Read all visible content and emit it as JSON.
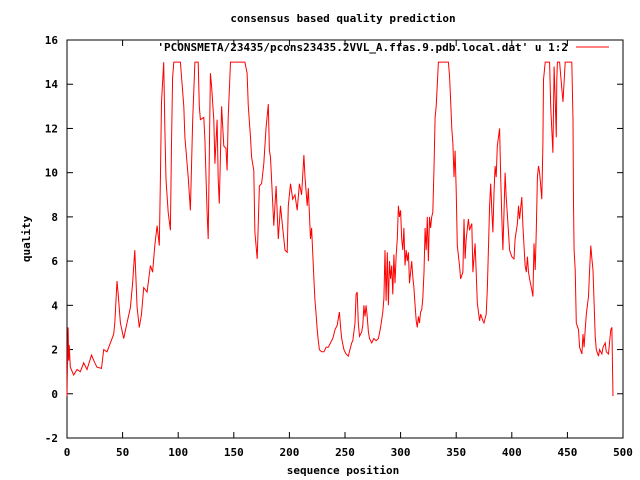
{
  "chart_data": {
    "type": "line",
    "title": "consensus based quality prediction",
    "xlabel": "sequence position",
    "ylabel": "quality",
    "xlim": [
      0,
      500
    ],
    "ylim": [
      -2,
      16
    ],
    "x_ticks": [
      0,
      50,
      100,
      150,
      200,
      250,
      300,
      350,
      400,
      450,
      500
    ],
    "y_ticks": [
      -2,
      0,
      2,
      4,
      6,
      8,
      10,
      12,
      14,
      16
    ],
    "grid": false,
    "legend_position": "top-right",
    "series": [
      {
        "name": "'PCONSMETA/23435/pcons23435.2VVL_A.ffas.9.pdb.local.dat' u 1:2",
        "color": "#ff0000",
        "points": [
          [
            0,
            -0.1
          ],
          [
            1,
            3.0
          ],
          [
            1.5,
            1.5
          ],
          [
            2,
            2.2
          ],
          [
            3,
            1.2
          ],
          [
            6,
            0.85
          ],
          [
            9,
            1.1
          ],
          [
            12,
            1.0
          ],
          [
            15,
            1.4
          ],
          [
            18,
            1.1
          ],
          [
            22,
            1.75
          ],
          [
            25,
            1.4
          ],
          [
            27,
            1.2
          ],
          [
            31,
            1.15
          ],
          [
            33,
            2.0
          ],
          [
            36,
            1.9
          ],
          [
            39,
            2.3
          ],
          [
            42,
            2.7
          ],
          [
            43,
            3.2
          ],
          [
            45,
            5.1
          ],
          [
            46,
            4.5
          ],
          [
            48,
            3.2
          ],
          [
            51,
            2.5
          ],
          [
            54,
            3.2
          ],
          [
            57,
            3.9
          ],
          [
            59,
            5.0
          ],
          [
            61,
            6.5
          ],
          [
            63,
            3.9
          ],
          [
            65,
            3.0
          ],
          [
            67,
            3.6
          ],
          [
            69,
            4.8
          ],
          [
            72,
            4.6
          ],
          [
            75,
            5.8
          ],
          [
            77,
            5.5
          ],
          [
            79,
            6.7
          ],
          [
            81,
            7.6
          ],
          [
            83,
            6.7
          ],
          [
            84,
            9.7
          ],
          [
            85,
            13.2
          ],
          [
            87,
            15.0
          ],
          [
            88,
            11.9
          ],
          [
            89,
            9.7
          ],
          [
            91,
            8.2
          ],
          [
            93,
            7.4
          ],
          [
            94,
            11.3
          ],
          [
            95,
            14.3
          ],
          [
            96,
            15.0
          ],
          [
            102,
            15.0
          ],
          [
            105,
            13.0
          ],
          [
            106,
            11.6
          ],
          [
            109,
            9.8
          ],
          [
            111,
            8.3
          ],
          [
            113,
            12.4
          ],
          [
            115,
            15.0
          ],
          [
            118,
            15.0
          ],
          [
            119,
            13.0
          ],
          [
            120,
            12.4
          ],
          [
            123,
            12.5
          ],
          [
            124,
            11.5
          ],
          [
            126,
            8.2
          ],
          [
            127,
            7.0
          ],
          [
            129,
            14.5
          ],
          [
            130,
            13.9
          ],
          [
            132,
            12.4
          ],
          [
            133,
            10.4
          ],
          [
            135,
            12.4
          ],
          [
            136,
            9.7
          ],
          [
            137,
            8.6
          ],
          [
            139,
            13.0
          ],
          [
            141,
            11.2
          ],
          [
            143,
            11.1
          ],
          [
            144,
            10.1
          ],
          [
            145,
            12.5
          ],
          [
            147,
            15.0
          ],
          [
            160,
            15.0
          ],
          [
            162,
            14.5
          ],
          [
            163,
            13.0
          ],
          [
            165,
            11.6
          ],
          [
            166,
            10.7
          ],
          [
            168,
            10.1
          ],
          [
            169,
            7.3
          ],
          [
            171,
            6.1
          ],
          [
            173,
            9.4
          ],
          [
            175,
            9.5
          ],
          [
            177,
            10.4
          ],
          [
            179,
            12.0
          ],
          [
            181,
            13.1
          ],
          [
            182,
            11.0
          ],
          [
            183,
            10.7
          ],
          [
            186,
            7.6
          ],
          [
            188,
            9.4
          ],
          [
            190,
            7.0
          ],
          [
            192,
            8.5
          ],
          [
            194,
            7.5
          ],
          [
            196,
            6.5
          ],
          [
            198,
            6.4
          ],
          [
            199,
            8.5
          ],
          [
            201,
            9.5
          ],
          [
            203,
            8.8
          ],
          [
            205,
            9.0
          ],
          [
            207,
            8.3
          ],
          [
            209,
            9.5
          ],
          [
            211,
            9.0
          ],
          [
            213,
            10.8
          ],
          [
            214,
            9.8
          ],
          [
            216,
            8.5
          ],
          [
            217,
            9.3
          ],
          [
            219,
            7.0
          ],
          [
            220,
            7.5
          ],
          [
            222,
            5.2
          ],
          [
            223,
            4.2
          ],
          [
            224,
            3.6
          ],
          [
            225,
            2.9
          ],
          [
            226,
            2.4
          ],
          [
            227,
            2.0
          ],
          [
            229,
            1.9
          ],
          [
            231,
            1.9
          ],
          [
            233,
            2.1
          ],
          [
            235,
            2.1
          ],
          [
            237,
            2.3
          ],
          [
            239,
            2.5
          ],
          [
            241,
            2.9
          ],
          [
            243,
            3.1
          ],
          [
            245,
            3.7
          ],
          [
            246,
            3.0
          ],
          [
            247,
            2.5
          ],
          [
            249,
            2.0
          ],
          [
            251,
            1.8
          ],
          [
            253,
            1.7
          ],
          [
            254,
            1.9
          ],
          [
            256,
            2.3
          ],
          [
            257,
            2.4
          ],
          [
            259,
            3.2
          ],
          [
            260,
            4.5
          ],
          [
            261,
            4.6
          ],
          [
            262,
            3.2
          ],
          [
            263,
            2.6
          ],
          [
            265,
            2.8
          ],
          [
            266,
            3.1
          ],
          [
            267,
            4.0
          ],
          [
            268,
            3.5
          ],
          [
            269,
            4.0
          ],
          [
            270,
            3.5
          ],
          [
            271,
            2.8
          ],
          [
            272,
            2.5
          ],
          [
            274,
            2.3
          ],
          [
            276,
            2.5
          ],
          [
            278,
            2.4
          ],
          [
            280,
            2.5
          ],
          [
            282,
            3.0
          ],
          [
            284,
            3.7
          ],
          [
            285,
            4.3
          ],
          [
            286,
            6.5
          ],
          [
            287,
            4.2
          ],
          [
            288,
            6.4
          ],
          [
            289,
            4.0
          ],
          [
            290,
            6.0
          ],
          [
            291,
            5.2
          ],
          [
            292,
            5.8
          ],
          [
            293,
            4.5
          ],
          [
            294,
            6.3
          ],
          [
            295,
            5.0
          ],
          [
            296,
            6.3
          ],
          [
            297,
            7.0
          ],
          [
            298,
            8.5
          ],
          [
            299,
            8.0
          ],
          [
            300,
            8.3
          ],
          [
            301,
            7.0
          ],
          [
            302,
            6.5
          ],
          [
            303,
            7.5
          ],
          [
            304,
            5.8
          ],
          [
            305,
            6.5
          ],
          [
            306,
            6.0
          ],
          [
            307,
            6.4
          ],
          [
            308,
            5.0
          ],
          [
            309,
            5.5
          ],
          [
            310,
            6.0
          ],
          [
            311,
            5.3
          ],
          [
            312,
            4.8
          ],
          [
            313,
            4.0
          ],
          [
            314,
            3.3
          ],
          [
            315,
            3.0
          ],
          [
            316,
            3.5
          ],
          [
            317,
            3.2
          ],
          [
            318,
            3.7
          ],
          [
            319,
            3.8
          ],
          [
            320,
            4.3
          ],
          [
            321,
            5.5
          ],
          [
            322,
            7.5
          ],
          [
            323,
            6.5
          ],
          [
            324,
            8.0
          ],
          [
            325,
            6.0
          ],
          [
            326,
            8.0
          ],
          [
            327,
            7.5
          ],
          [
            328,
            8.0
          ],
          [
            329,
            8.2
          ],
          [
            330,
            10.2
          ],
          [
            331,
            12.5
          ],
          [
            332,
            13.0
          ],
          [
            333,
            14.0
          ],
          [
            334,
            15.0
          ],
          [
            343,
            15.0
          ],
          [
            344,
            14.4
          ],
          [
            345,
            13.3
          ],
          [
            346,
            12.0
          ],
          [
            347,
            11.3
          ],
          [
            348,
            9.8
          ],
          [
            349,
            11.0
          ],
          [
            350,
            9.2
          ],
          [
            351,
            6.7
          ],
          [
            353,
            5.8
          ],
          [
            354,
            5.2
          ],
          [
            356,
            5.5
          ],
          [
            357,
            7.9
          ],
          [
            358,
            6.1
          ],
          [
            359,
            7.0
          ],
          [
            361,
            7.9
          ],
          [
            362,
            7.4
          ],
          [
            364,
            7.7
          ],
          [
            365,
            5.5
          ],
          [
            367,
            6.8
          ],
          [
            368,
            5.5
          ],
          [
            369,
            4.1
          ],
          [
            371,
            3.3
          ],
          [
            372,
            3.6
          ],
          [
            374,
            3.3
          ],
          [
            375,
            3.2
          ],
          [
            377,
            3.6
          ],
          [
            378,
            4.7
          ],
          [
            379,
            6.5
          ],
          [
            380,
            8.5
          ],
          [
            381,
            9.5
          ],
          [
            382,
            8.3
          ],
          [
            383,
            7.3
          ],
          [
            384,
            9.1
          ],
          [
            385,
            10.3
          ],
          [
            386,
            9.8
          ],
          [
            387,
            11.2
          ],
          [
            389,
            12.0
          ],
          [
            390,
            9.8
          ],
          [
            391,
            8.0
          ],
          [
            392,
            6.5
          ],
          [
            393,
            8.2
          ],
          [
            394,
            10.0
          ],
          [
            395,
            8.9
          ],
          [
            397,
            7.3
          ],
          [
            398,
            6.5
          ],
          [
            400,
            6.2
          ],
          [
            402,
            6.1
          ],
          [
            403,
            7.0
          ],
          [
            405,
            7.7
          ],
          [
            406,
            8.5
          ],
          [
            407,
            7.9
          ],
          [
            409,
            8.9
          ],
          [
            410,
            7.6
          ],
          [
            412,
            5.8
          ],
          [
            413,
            5.5
          ],
          [
            414,
            6.2
          ],
          [
            415,
            5.5
          ],
          [
            416,
            5.2
          ],
          [
            418,
            4.7
          ],
          [
            419,
            4.4
          ],
          [
            420,
            6.8
          ],
          [
            421,
            5.6
          ],
          [
            422,
            7.4
          ],
          [
            423,
            9.8
          ],
          [
            424,
            10.3
          ],
          [
            425,
            10.0
          ],
          [
            427,
            8.8
          ],
          [
            428,
            11.3
          ],
          [
            428.5,
            14.2
          ],
          [
            430,
            15.0
          ],
          [
            434,
            15.0
          ],
          [
            435,
            13.0
          ],
          [
            437,
            10.9
          ],
          [
            438,
            14.8
          ],
          [
            439,
            13.3
          ],
          [
            440,
            11.6
          ],
          [
            440.5,
            14.2
          ],
          [
            441,
            15.0
          ],
          [
            443,
            15.0
          ],
          [
            444,
            14.4
          ],
          [
            445,
            13.8
          ],
          [
            446,
            13.2
          ],
          [
            448,
            15.0
          ],
          [
            454,
            15.0
          ],
          [
            455,
            12.4
          ],
          [
            455.5,
            8.6
          ],
          [
            456,
            6.5
          ],
          [
            457,
            5.6
          ],
          [
            458,
            3.2
          ],
          [
            460,
            2.9
          ],
          [
            461,
            2.1
          ],
          [
            463,
            1.8
          ],
          [
            464,
            2.7
          ],
          [
            465,
            2.1
          ],
          [
            466,
            2.9
          ],
          [
            467,
            3.6
          ],
          [
            469,
            4.4
          ],
          [
            470,
            5.6
          ],
          [
            471,
            6.7
          ],
          [
            472,
            6.1
          ],
          [
            473,
            5.6
          ],
          [
            474,
            4.1
          ],
          [
            475,
            2.6
          ],
          [
            476,
            2.0
          ],
          [
            478,
            1.7
          ],
          [
            479,
            2.0
          ],
          [
            481,
            1.8
          ],
          [
            482,
            2.1
          ],
          [
            484,
            2.3
          ],
          [
            485,
            1.9
          ],
          [
            487,
            1.8
          ],
          [
            488,
            2.4
          ],
          [
            489,
            2.9
          ],
          [
            490,
            3.0
          ],
          [
            490.5,
            1.5
          ],
          [
            491,
            -0.1
          ]
        ]
      }
    ]
  }
}
